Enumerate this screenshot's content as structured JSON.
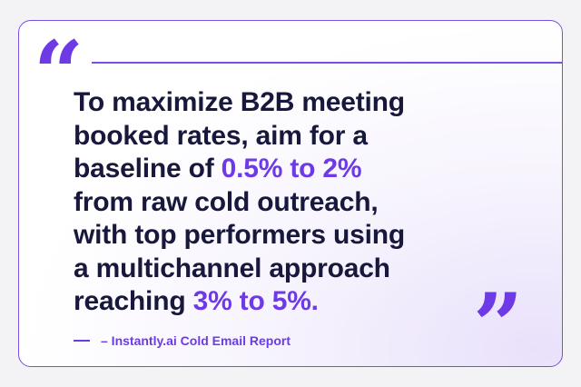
{
  "open_quote": "“",
  "close_quote": "”",
  "quote": {
    "lines": [
      [
        {
          "text": "To maximize B2B meeting",
          "emphasis": false
        }
      ],
      [
        {
          "text": "booked rates, aim for a",
          "emphasis": false
        }
      ],
      [
        {
          "text": "baseline of ",
          "emphasis": false
        },
        {
          "text": "0.5% to 2%",
          "emphasis": true
        }
      ],
      [
        {
          "text": "from raw cold outreach,",
          "emphasis": false
        }
      ],
      [
        {
          "text": "with top performers using",
          "emphasis": false
        }
      ],
      [
        {
          "text": "a multichannel approach",
          "emphasis": false
        }
      ],
      [
        {
          "text": "reaching ",
          "emphasis": false
        },
        {
          "text": "3% to 5%.",
          "emphasis": true
        }
      ]
    ]
  },
  "attribution": "– Instantly.ai Cold Email Report"
}
